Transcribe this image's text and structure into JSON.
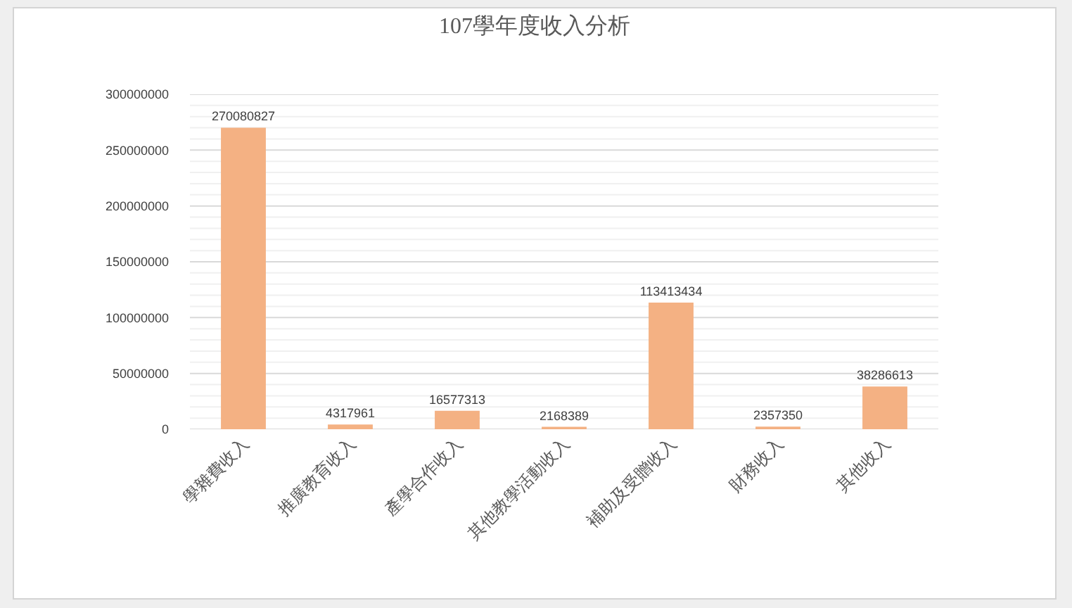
{
  "chart_data": {
    "type": "bar",
    "title": "107學年度收入分析",
    "categories": [
      "學雜費收入",
      "推廣教育收入",
      "產學合作收入",
      "其他教學活動收入",
      "補助及受贈收入",
      "財務收入",
      "其他收入"
    ],
    "values": [
      270080827,
      4317961,
      16577313,
      2168389,
      113413434,
      2357350,
      38286613
    ],
    "color": "#f4b183",
    "ylim": [
      0,
      300000000
    ],
    "yticks": [
      0,
      50000000,
      100000000,
      150000000,
      200000000,
      250000000,
      300000000
    ],
    "grid": "y",
    "data_labels": true
  }
}
